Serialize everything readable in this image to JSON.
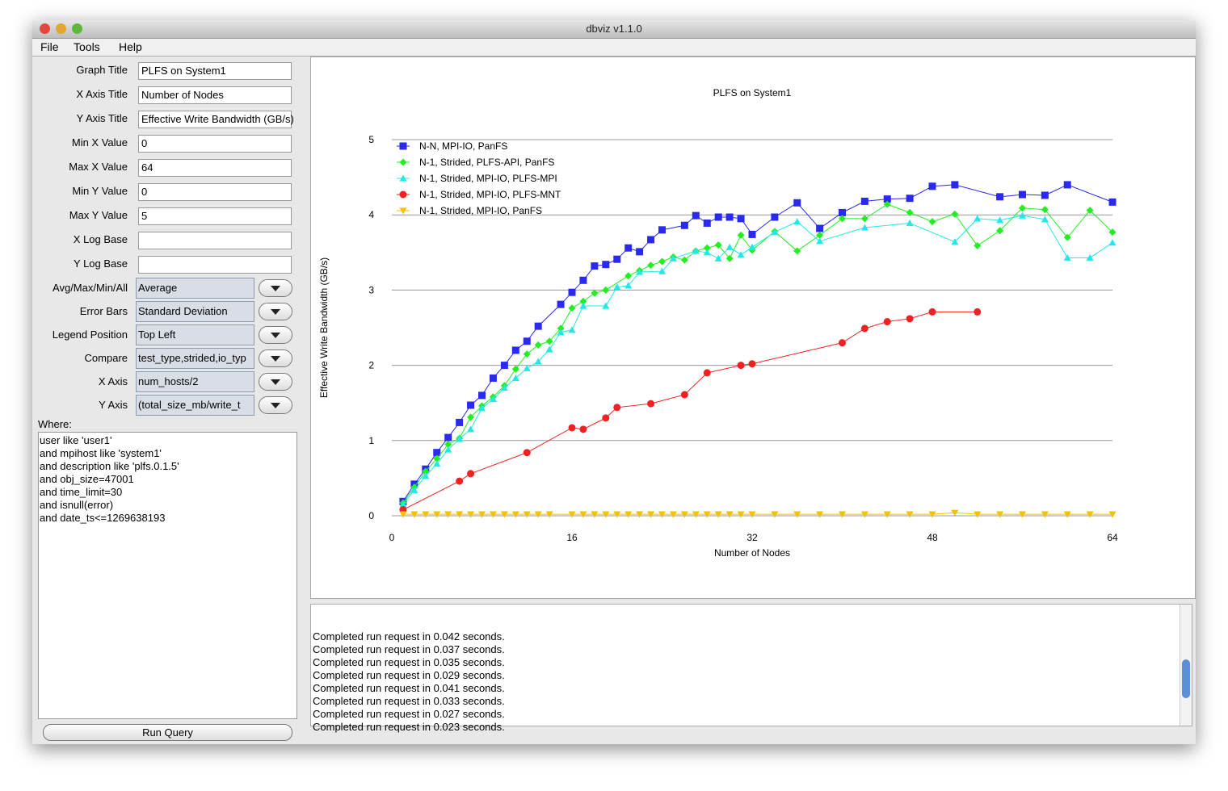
{
  "window": {
    "title": "dbviz v1.1.0"
  },
  "menu": [
    "File",
    "Tools",
    "Help"
  ],
  "form": {
    "text_fields": [
      {
        "label": "Graph Title",
        "value": "PLFS on System1"
      },
      {
        "label": "X Axis Title",
        "value": "Number of Nodes"
      },
      {
        "label": "Y Axis Title",
        "value": "Effective Write Bandwidth (GB/s)"
      },
      {
        "label": "Min X Value",
        "value": "0"
      },
      {
        "label": "Max X Value",
        "value": "64"
      },
      {
        "label": "Min Y Value",
        "value": "0"
      },
      {
        "label": "Max Y Value",
        "value": "5"
      },
      {
        "label": "X Log Base"
      },
      {
        "label": "Y Log Base"
      }
    ],
    "combo_fields": [
      {
        "label": "Avg/Max/Min/All",
        "value": "Average"
      },
      {
        "label": "Error Bars",
        "value": "Standard Deviation"
      },
      {
        "label": "Legend Position",
        "value": "Top Left"
      },
      {
        "label": "Compare",
        "value": "test_type,strided,io_typ"
      },
      {
        "label": "X Axis",
        "value": "num_hosts/2"
      },
      {
        "label": "Y Axis",
        "value": "(total_size_mb/write_t"
      }
    ],
    "where_label": "Where:",
    "where_lines": [
      "user like 'user1'",
      "and mpihost like 'system1'",
      "and description like 'plfs.0.1.5'",
      "and obj_size=47001",
      "and time_limit=30",
      "and isnull(error)",
      "and date_ts<=1269638193"
    ],
    "button": "Run Query"
  },
  "log": [
    "Completed run request in 0.042 seconds.",
    "Completed run request in 0.037 seconds.",
    "Completed run request in 0.035 seconds.",
    "Completed run request in 0.029 seconds.",
    "Completed run request in 0.041 seconds.",
    "Completed run request in 0.033 seconds.",
    "Completed run request in 0.027 seconds.",
    "Completed run request in 0.023 seconds."
  ],
  "chart_data": {
    "type": "line",
    "title": "PLFS on System1",
    "x_label": "Number of Nodes",
    "y_label": "Effective Write Bandwidth (GB/s)",
    "xlim": [
      0,
      64
    ],
    "ylim": [
      0,
      5
    ],
    "xticks": [
      0,
      16,
      32,
      48,
      64
    ],
    "yticks": [
      0,
      1,
      2,
      3,
      4,
      5
    ],
    "grid": true,
    "legend_position": "top-left",
    "series": [
      {
        "name": "N-N, MPI-IO, PanFS",
        "color": "#2a2aee",
        "marker": "square",
        "x": [
          1,
          2,
          3,
          4,
          5,
          6,
          7,
          8,
          9,
          10,
          11,
          12,
          13,
          15,
          16,
          17,
          18,
          19,
          20,
          21,
          22,
          23,
          24,
          26,
          27,
          28,
          29,
          30,
          31,
          32,
          34,
          36,
          38,
          40,
          42,
          44,
          46,
          48,
          50,
          54,
          56,
          58,
          60,
          64
        ],
        "values": [
          0.19,
          0.42,
          0.62,
          0.84,
          1.04,
          1.24,
          1.47,
          1.6,
          1.83,
          2.0,
          2.2,
          2.32,
          2.52,
          2.81,
          2.97,
          3.13,
          3.32,
          3.34,
          3.41,
          3.56,
          3.51,
          3.67,
          3.8,
          3.86,
          3.99,
          3.89,
          3.97,
          3.97,
          3.95,
          3.74,
          3.97,
          4.16,
          3.82,
          4.03,
          4.18,
          4.21,
          4.22,
          4.38,
          4.4,
          4.24,
          4.27,
          4.26,
          4.4,
          4.17
        ]
      },
      {
        "name": "N-1, Strided, PLFS-API, PanFS",
        "color": "#22ee22",
        "marker": "diamond",
        "x": [
          1,
          2,
          3,
          4,
          5,
          6,
          7,
          8,
          9,
          10,
          11,
          12,
          13,
          14,
          15,
          16,
          17,
          18,
          19,
          21,
          22,
          23,
          24,
          25,
          26,
          27,
          28,
          29,
          30,
          31,
          32,
          34,
          36,
          38,
          40,
          42,
          44,
          46,
          48,
          50,
          52,
          54,
          56,
          58,
          60,
          62,
          64
        ],
        "values": [
          0.17,
          0.38,
          0.59,
          0.76,
          0.95,
          1.03,
          1.31,
          1.46,
          1.58,
          1.73,
          1.95,
          2.15,
          2.27,
          2.32,
          2.49,
          2.76,
          2.85,
          2.96,
          3.0,
          3.19,
          3.26,
          3.33,
          3.38,
          3.44,
          3.4,
          3.52,
          3.56,
          3.6,
          3.42,
          3.73,
          3.53,
          3.78,
          3.52,
          3.73,
          3.95,
          3.95,
          4.14,
          4.03,
          3.91,
          4.01,
          3.59,
          3.79,
          4.09,
          4.07,
          3.7,
          4.06,
          3.77
        ]
      },
      {
        "name": "N-1, Strided, MPI-IO, PLFS-MPI",
        "color": "#22e8e8",
        "marker": "triangle-up",
        "x": [
          1,
          2,
          3,
          4,
          5,
          6,
          7,
          8,
          9,
          10,
          11,
          12,
          13,
          14,
          15,
          16,
          17,
          19,
          20,
          21,
          22,
          24,
          25,
          27,
          28,
          29,
          30,
          31,
          32,
          34,
          36,
          38,
          42,
          46,
          50,
          52,
          54,
          56,
          58,
          60,
          62,
          64
        ],
        "values": [
          0.15,
          0.34,
          0.53,
          0.69,
          0.88,
          1.02,
          1.15,
          1.43,
          1.55,
          1.7,
          1.83,
          1.96,
          2.05,
          2.21,
          2.44,
          2.47,
          2.79,
          2.79,
          3.04,
          3.06,
          3.24,
          3.25,
          3.42,
          3.52,
          3.5,
          3.42,
          3.57,
          3.47,
          3.57,
          3.77,
          3.91,
          3.65,
          3.83,
          3.89,
          3.64,
          3.95,
          3.93,
          3.99,
          3.94,
          3.43,
          3.43,
          3.63
        ]
      },
      {
        "name": "N-1, Strided, MPI-IO, PLFS-MNT",
        "color": "#ee2222",
        "marker": "circle",
        "x": [
          1,
          6,
          7,
          12,
          16,
          17,
          19,
          20,
          23,
          26,
          28,
          31,
          32,
          40,
          42,
          44,
          46,
          48,
          52
        ],
        "values": [
          0.08,
          0.46,
          0.56,
          0.84,
          1.17,
          1.15,
          1.3,
          1.44,
          1.49,
          1.61,
          1.9,
          2.0,
          2.02,
          2.3,
          2.49,
          2.58,
          2.62,
          2.71,
          2.71
        ]
      },
      {
        "name": "N-1, Strided, MPI-IO, PanFS",
        "color": "#f2c200",
        "marker": "triangle-down",
        "x": [
          1,
          2,
          3,
          4,
          5,
          6,
          7,
          8,
          9,
          10,
          11,
          12,
          13,
          14,
          16,
          17,
          18,
          19,
          20,
          21,
          22,
          23,
          24,
          25,
          26,
          27,
          28,
          29,
          30,
          31,
          32,
          34,
          36,
          38,
          40,
          42,
          44,
          46,
          48,
          50,
          52,
          54,
          56,
          58,
          60,
          62,
          64
        ],
        "values": [
          0.02,
          0.02,
          0.02,
          0.02,
          0.02,
          0.02,
          0.02,
          0.02,
          0.02,
          0.02,
          0.02,
          0.02,
          0.02,
          0.02,
          0.02,
          0.02,
          0.02,
          0.02,
          0.02,
          0.02,
          0.02,
          0.02,
          0.02,
          0.02,
          0.02,
          0.02,
          0.02,
          0.02,
          0.02,
          0.02,
          0.02,
          0.02,
          0.02,
          0.02,
          0.02,
          0.02,
          0.02,
          0.02,
          0.02,
          0.04,
          0.02,
          0.02,
          0.02,
          0.02,
          0.02,
          0.02,
          0.02
        ]
      }
    ]
  }
}
